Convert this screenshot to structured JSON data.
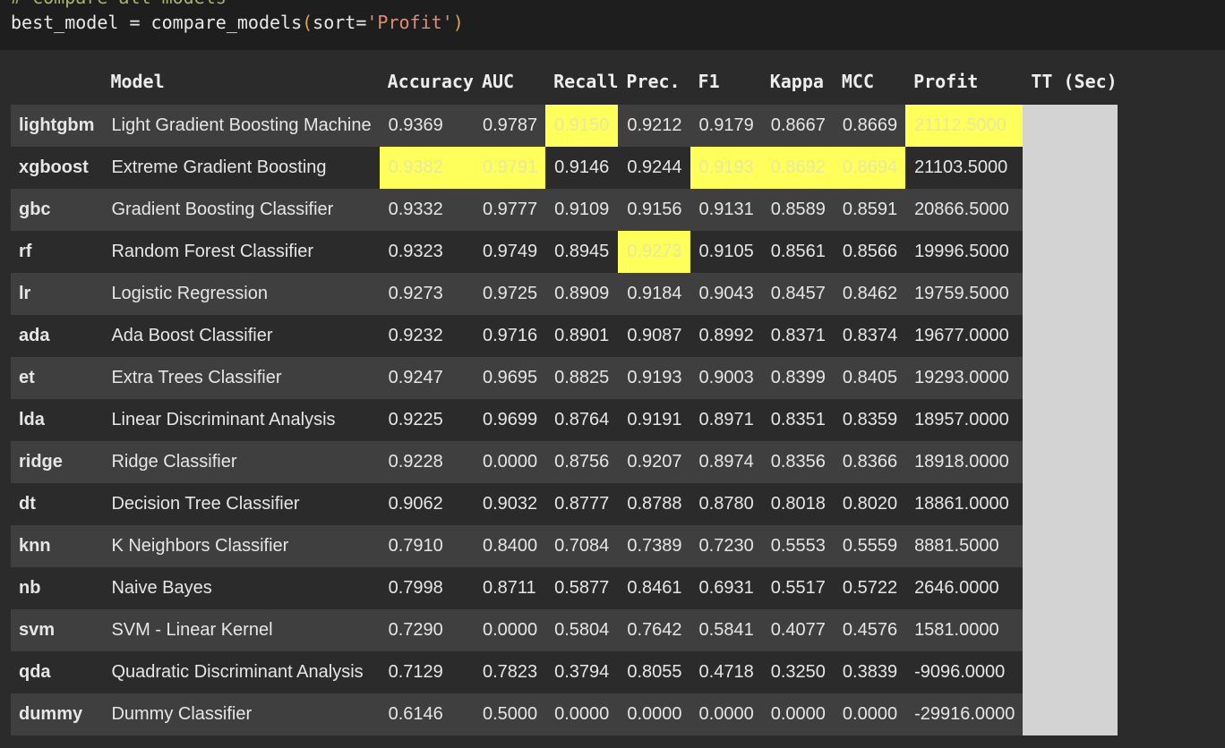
{
  "code": {
    "comment": "# compare all models",
    "var": "best_model",
    "op": " = ",
    "func": "compare_models",
    "arg_name": "sort=",
    "arg_value": "'Profit'"
  },
  "table": {
    "headers": [
      "",
      "Model",
      "Accuracy",
      "AUC",
      "Recall",
      "Prec.",
      "F1",
      "Kappa",
      "MCC",
      "Profit",
      "TT (Sec)"
    ],
    "highlight_color": "#ffff5c",
    "tt_column_color": "#d3d3d3",
    "rows": [
      {
        "id": "lightgbm",
        "model": "Light Gradient Boosting Machine",
        "accuracy": "0.9369",
        "auc": "0.9787",
        "recall": "0.9150",
        "prec": "0.9212",
        "f1": "0.9179",
        "kappa": "0.8667",
        "mcc": "0.8669",
        "profit": "21112.5000",
        "tt": "",
        "highlight": [
          "recall",
          "profit"
        ]
      },
      {
        "id": "xgboost",
        "model": "Extreme Gradient Boosting",
        "accuracy": "0.9382",
        "auc": "0.9791",
        "recall": "0.9146",
        "prec": "0.9244",
        "f1": "0.9193",
        "kappa": "0.8692",
        "mcc": "0.8694",
        "profit": "21103.5000",
        "tt": "",
        "highlight": [
          "accuracy",
          "auc",
          "f1",
          "kappa",
          "mcc"
        ]
      },
      {
        "id": "gbc",
        "model": "Gradient Boosting Classifier",
        "accuracy": "0.9332",
        "auc": "0.9777",
        "recall": "0.9109",
        "prec": "0.9156",
        "f1": "0.9131",
        "kappa": "0.8589",
        "mcc": "0.8591",
        "profit": "20866.5000",
        "tt": "",
        "highlight": []
      },
      {
        "id": "rf",
        "model": "Random Forest Classifier",
        "accuracy": "0.9323",
        "auc": "0.9749",
        "recall": "0.8945",
        "prec": "0.9273",
        "f1": "0.9105",
        "kappa": "0.8561",
        "mcc": "0.8566",
        "profit": "19996.5000",
        "tt": "",
        "highlight": [
          "prec"
        ]
      },
      {
        "id": "lr",
        "model": "Logistic Regression",
        "accuracy": "0.9273",
        "auc": "0.9725",
        "recall": "0.8909",
        "prec": "0.9184",
        "f1": "0.9043",
        "kappa": "0.8457",
        "mcc": "0.8462",
        "profit": "19759.5000",
        "tt": "",
        "highlight": []
      },
      {
        "id": "ada",
        "model": "Ada Boost Classifier",
        "accuracy": "0.9232",
        "auc": "0.9716",
        "recall": "0.8901",
        "prec": "0.9087",
        "f1": "0.8992",
        "kappa": "0.8371",
        "mcc": "0.8374",
        "profit": "19677.0000",
        "tt": "",
        "highlight": []
      },
      {
        "id": "et",
        "model": "Extra Trees Classifier",
        "accuracy": "0.9247",
        "auc": "0.9695",
        "recall": "0.8825",
        "prec": "0.9193",
        "f1": "0.9003",
        "kappa": "0.8399",
        "mcc": "0.8405",
        "profit": "19293.0000",
        "tt": "",
        "highlight": []
      },
      {
        "id": "lda",
        "model": "Linear Discriminant Analysis",
        "accuracy": "0.9225",
        "auc": "0.9699",
        "recall": "0.8764",
        "prec": "0.9191",
        "f1": "0.8971",
        "kappa": "0.8351",
        "mcc": "0.8359",
        "profit": "18957.0000",
        "tt": "",
        "highlight": []
      },
      {
        "id": "ridge",
        "model": "Ridge Classifier",
        "accuracy": "0.9228",
        "auc": "0.0000",
        "recall": "0.8756",
        "prec": "0.9207",
        "f1": "0.8974",
        "kappa": "0.8356",
        "mcc": "0.8366",
        "profit": "18918.0000",
        "tt": "",
        "highlight": []
      },
      {
        "id": "dt",
        "model": "Decision Tree Classifier",
        "accuracy": "0.9062",
        "auc": "0.9032",
        "recall": "0.8777",
        "prec": "0.8788",
        "f1": "0.8780",
        "kappa": "0.8018",
        "mcc": "0.8020",
        "profit": "18861.0000",
        "tt": "",
        "highlight": []
      },
      {
        "id": "knn",
        "model": "K Neighbors Classifier",
        "accuracy": "0.7910",
        "auc": "0.8400",
        "recall": "0.7084",
        "prec": "0.7389",
        "f1": "0.7230",
        "kappa": "0.5553",
        "mcc": "0.5559",
        "profit": "8881.5000",
        "tt": "",
        "highlight": []
      },
      {
        "id": "nb",
        "model": "Naive Bayes",
        "accuracy": "0.7998",
        "auc": "0.8711",
        "recall": "0.5877",
        "prec": "0.8461",
        "f1": "0.6931",
        "kappa": "0.5517",
        "mcc": "0.5722",
        "profit": "2646.0000",
        "tt": "",
        "highlight": []
      },
      {
        "id": "svm",
        "model": "SVM - Linear Kernel",
        "accuracy": "0.7290",
        "auc": "0.0000",
        "recall": "0.5804",
        "prec": "0.7642",
        "f1": "0.5841",
        "kappa": "0.4077",
        "mcc": "0.4576",
        "profit": "1581.0000",
        "tt": "",
        "highlight": []
      },
      {
        "id": "qda",
        "model": "Quadratic Discriminant Analysis",
        "accuracy": "0.7129",
        "auc": "0.7823",
        "recall": "0.3794",
        "prec": "0.8055",
        "f1": "0.4718",
        "kappa": "0.3250",
        "mcc": "0.3839",
        "profit": "-9096.0000",
        "tt": "",
        "highlight": []
      },
      {
        "id": "dummy",
        "model": "Dummy Classifier",
        "accuracy": "0.6146",
        "auc": "0.5000",
        "recall": "0.0000",
        "prec": "0.0000",
        "f1": "0.0000",
        "kappa": "0.0000",
        "mcc": "0.0000",
        "profit": "-29916.0000",
        "tt": "",
        "highlight": []
      }
    ]
  }
}
